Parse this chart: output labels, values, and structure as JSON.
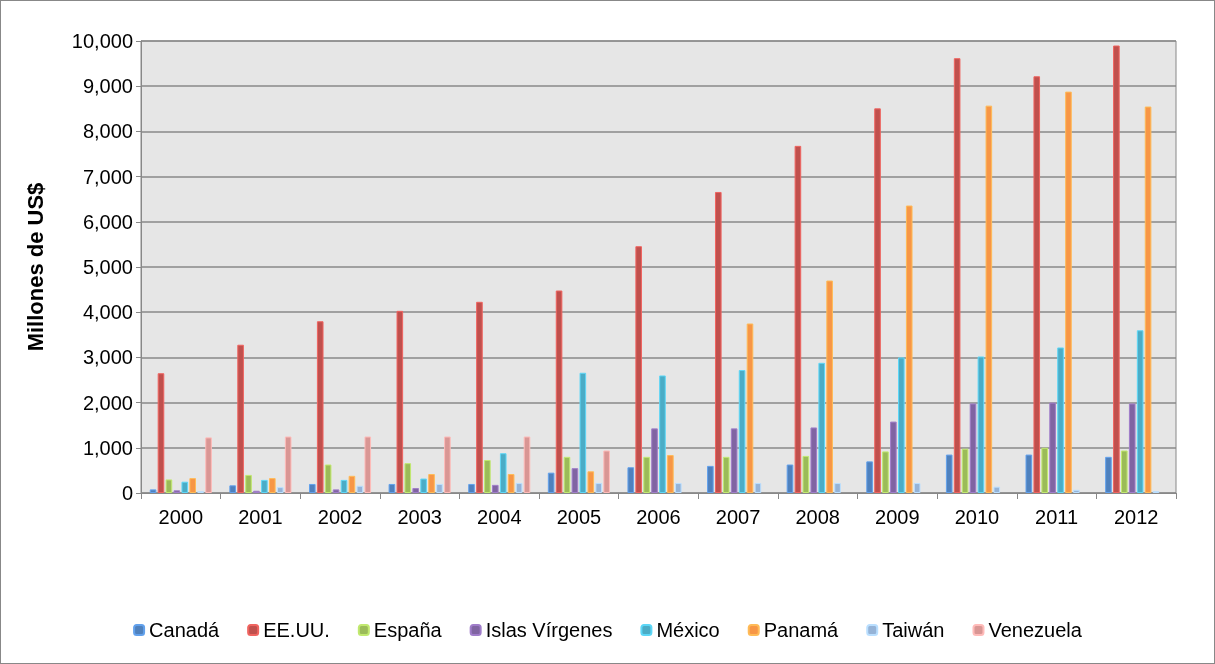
{
  "chart_data": {
    "type": "bar",
    "ylabel": "Millones de US$",
    "categories": [
      "2000",
      "2001",
      "2002",
      "2003",
      "2004",
      "2005",
      "2006",
      "2007",
      "2008",
      "2009",
      "2010",
      "2011",
      "2012"
    ],
    "series": [
      {
        "name": "Canadá",
        "color": "#4f81bd",
        "values": [
          80,
          170,
          200,
          200,
          200,
          450,
          570,
          600,
          630,
          700,
          850,
          850,
          800
        ]
      },
      {
        "name": "EE.UU.",
        "color": "#c0504d",
        "values": [
          2650,
          3280,
          3800,
          4030,
          4230,
          4480,
          5460,
          6660,
          7680,
          8510,
          9620,
          9220,
          9900
        ]
      },
      {
        "name": "España",
        "color": "#9bbb59",
        "values": [
          300,
          400,
          630,
          660,
          730,
          800,
          800,
          800,
          820,
          920,
          980,
          1000,
          940
        ]
      },
      {
        "name": "Islas Vírgenes",
        "color": "#8064a2",
        "values": [
          60,
          50,
          80,
          110,
          180,
          550,
          1430,
          1430,
          1450,
          1580,
          1980,
          2000,
          1980
        ]
      },
      {
        "name": "México",
        "color": "#4bacc6",
        "values": [
          250,
          290,
          290,
          320,
          880,
          2660,
          2600,
          2720,
          2880,
          3000,
          3020,
          3220,
          3600
        ]
      },
      {
        "name": "Panamá",
        "color": "#f79646",
        "values": [
          330,
          330,
          380,
          420,
          420,
          480,
          840,
          3750,
          4700,
          6360,
          8570,
          8880,
          8550
        ]
      },
      {
        "name": "Taiwán",
        "color": "#95b3d7",
        "values": [
          40,
          130,
          160,
          200,
          220,
          220,
          220,
          220,
          220,
          220,
          140,
          70,
          40
        ]
      },
      {
        "name": "Venezuela",
        "color": "#d99694",
        "values": [
          1230,
          1250,
          1250,
          1250,
          1250,
          940,
          null,
          null,
          null,
          null,
          null,
          null,
          null
        ]
      }
    ],
    "ylim": [
      0,
      10000
    ],
    "yticks": [
      0,
      {
        "value": 1000,
        "label": "1,000"
      },
      {
        "value": 2000,
        "label": "2,000"
      },
      {
        "value": 3000,
        "label": "3,000"
      },
      {
        "value": 4000,
        "label": "4,000"
      },
      {
        "value": 5000,
        "label": "5,000"
      },
      {
        "value": 6000,
        "label": "6,000"
      },
      {
        "value": 7000,
        "label": "7,000"
      },
      {
        "value": 8000,
        "label": "8,000"
      },
      {
        "value": 9000,
        "label": "9,000"
      },
      {
        "value": 10000,
        "label": "10,000"
      }
    ],
    "grid": "y",
    "legend": "bottom"
  }
}
